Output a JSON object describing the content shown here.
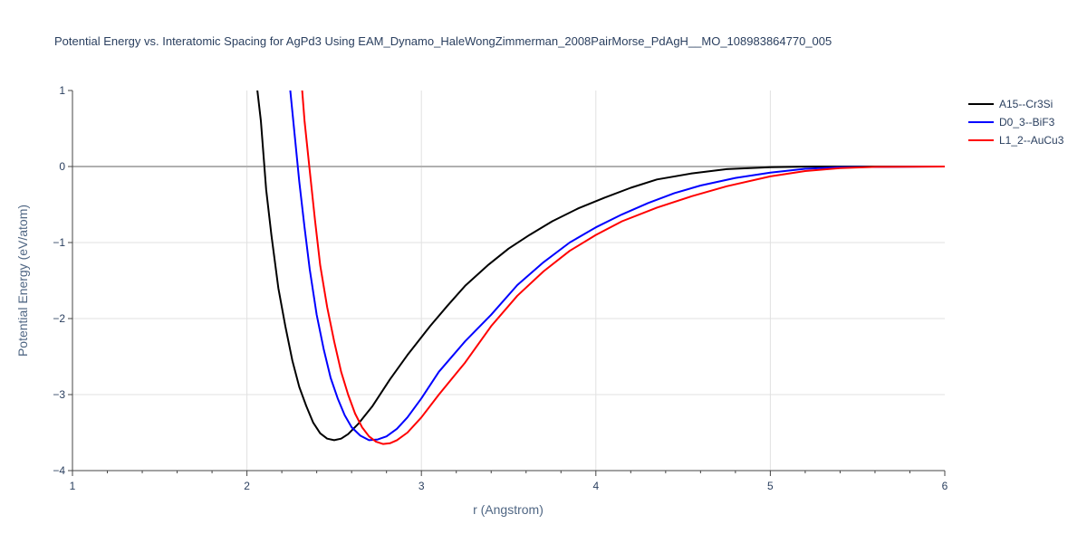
{
  "chart_data": {
    "type": "line",
    "title": "Potential Energy vs. Interatomic Spacing for AgPd3 Using EAM_Dynamo_HaleWongZimmerman_2008PairMorse_PdAgH__MO_108983864770_005",
    "xlabel": "r (Angstrom)",
    "ylabel": "Potential Energy (eV/atom)",
    "xlim": [
      1,
      6
    ],
    "ylim": [
      -4,
      1
    ],
    "xticks": [
      "1",
      "2",
      "3",
      "4",
      "5",
      "6"
    ],
    "yticks": [
      "1",
      "0",
      "−1",
      "−2",
      "−3",
      "−4"
    ],
    "grid": true,
    "legend_position": "top-right",
    "series": [
      {
        "name": "A15--Cr3Si",
        "color": "#000000",
        "x": [
          2.05,
          2.08,
          2.11,
          2.14,
          2.18,
          2.22,
          2.26,
          2.3,
          2.34,
          2.38,
          2.42,
          2.46,
          2.5,
          2.54,
          2.58,
          2.64,
          2.72,
          2.82,
          2.92,
          3.05,
          3.15,
          3.25,
          3.38,
          3.5,
          3.62,
          3.75,
          3.9,
          4.05,
          4.2,
          4.35,
          4.55,
          4.75,
          5.0,
          5.25,
          5.5,
          6.0
        ],
        "y": [
          1.2,
          0.6,
          -0.3,
          -0.9,
          -1.6,
          -2.1,
          -2.55,
          -2.9,
          -3.15,
          -3.37,
          -3.51,
          -3.58,
          -3.6,
          -3.58,
          -3.52,
          -3.38,
          -3.15,
          -2.8,
          -2.48,
          -2.1,
          -1.83,
          -1.57,
          -1.3,
          -1.08,
          -0.9,
          -0.72,
          -0.55,
          -0.41,
          -0.28,
          -0.17,
          -0.09,
          -0.035,
          -0.01,
          0.0,
          0.0,
          0.0
        ]
      },
      {
        "name": "D0_3--BiF3",
        "color": "#0000ff",
        "x": [
          2.24,
          2.27,
          2.3,
          2.33,
          2.36,
          2.4,
          2.44,
          2.48,
          2.52,
          2.56,
          2.6,
          2.65,
          2.7,
          2.75,
          2.8,
          2.86,
          2.92,
          3.0,
          3.1,
          3.25,
          3.4,
          3.55,
          3.7,
          3.85,
          4.0,
          4.15,
          4.3,
          4.45,
          4.6,
          4.8,
          5.0,
          5.2,
          5.4,
          6.0
        ],
        "y": [
          1.2,
          0.5,
          -0.2,
          -0.8,
          -1.35,
          -1.95,
          -2.4,
          -2.78,
          -3.05,
          -3.27,
          -3.43,
          -3.54,
          -3.6,
          -3.59,
          -3.55,
          -3.45,
          -3.3,
          -3.05,
          -2.7,
          -2.3,
          -1.95,
          -1.56,
          -1.26,
          -1.0,
          -0.8,
          -0.63,
          -0.48,
          -0.35,
          -0.25,
          -0.15,
          -0.08,
          -0.03,
          -0.01,
          0.0
        ]
      },
      {
        "name": "L1_2--AuCu3",
        "color": "#ff0000",
        "x": [
          2.31,
          2.33,
          2.36,
          2.39,
          2.42,
          2.46,
          2.5,
          2.54,
          2.58,
          2.62,
          2.66,
          2.7,
          2.74,
          2.78,
          2.82,
          2.86,
          2.92,
          3.0,
          3.1,
          3.25,
          3.4,
          3.55,
          3.7,
          3.85,
          4.0,
          4.15,
          4.35,
          4.55,
          4.75,
          5.0,
          5.2,
          5.4,
          5.6,
          6.0
        ],
        "y": [
          1.2,
          0.6,
          -0.05,
          -0.7,
          -1.3,
          -1.85,
          -2.3,
          -2.7,
          -3.0,
          -3.25,
          -3.43,
          -3.55,
          -3.62,
          -3.65,
          -3.64,
          -3.6,
          -3.5,
          -3.3,
          -3.0,
          -2.58,
          -2.1,
          -1.7,
          -1.38,
          -1.11,
          -0.9,
          -0.72,
          -0.54,
          -0.39,
          -0.26,
          -0.13,
          -0.06,
          -0.02,
          -0.005,
          0.0
        ]
      }
    ]
  }
}
